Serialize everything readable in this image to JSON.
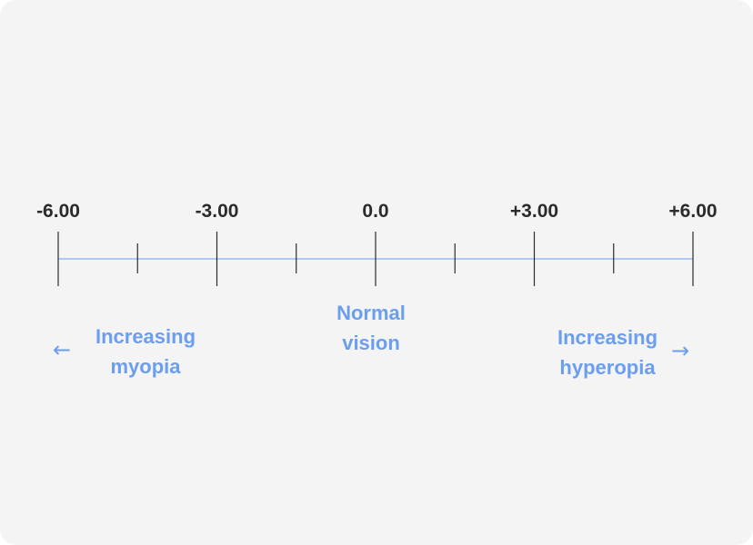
{
  "scale": {
    "min": -6,
    "max": 6,
    "labels": [
      {
        "value": -6,
        "text": "-6.00"
      },
      {
        "value": -3,
        "text": "-3.00"
      },
      {
        "value": 0,
        "text": "0.0"
      },
      {
        "value": 3,
        "text": "+3.00"
      },
      {
        "value": 6,
        "text": "+6.00"
      }
    ],
    "major_ticks": [
      -6,
      -3,
      0,
      3,
      6
    ],
    "minor_ticks": [
      -4.5,
      -1.5,
      1.5,
      4.5
    ]
  },
  "annotations": {
    "left": {
      "line1": "Increasing",
      "line2": "myopia",
      "arrow_icon": "arrow-left-icon"
    },
    "center": {
      "line1": "Normal",
      "line2": "vision"
    },
    "right": {
      "line1": "Increasing",
      "line2": "hyperopia",
      "arrow_icon": "arrow-right-icon"
    }
  },
  "colors": {
    "accent": "#6b9eef",
    "axis_line": "#6b9eef",
    "tick": "#2b2b2b",
    "label": "#2b2b2b",
    "background": "#f4f4f5"
  }
}
